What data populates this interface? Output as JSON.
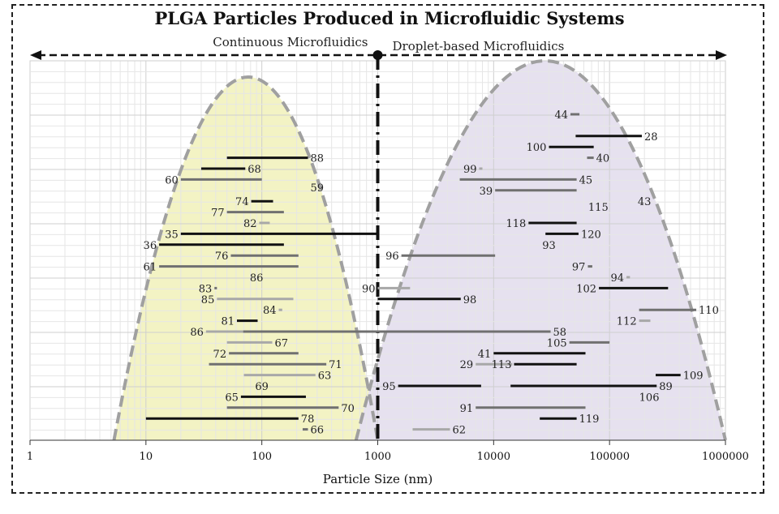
{
  "chart_data": {
    "type": "range-bar",
    "title": "PLGA Particles Produced in Microfluidic Systems",
    "xlabel": "Particle Size (nm)",
    "ylabel": "",
    "xscale": "log",
    "xlim": [
      1,
      1000000
    ],
    "xticks": [
      "1",
      "10",
      "100",
      "1000",
      "10000",
      "100000",
      "1000000"
    ],
    "ylim_rows": [
      -5,
      30
    ],
    "grid": true,
    "regions": [
      {
        "label": "Continuous Microfluidics",
        "side": "left",
        "color": "#f3f3c4",
        "curve_range": [
          5.3,
          1000
        ],
        "curve_peak": 80
      },
      {
        "label": "Droplet-based Microfluidics",
        "side": "right",
        "color": "#e6e1ef",
        "curve_range": [
          650,
          1000000
        ],
        "curve_peak": 30000
      }
    ],
    "divider_x": 1000,
    "colors": {
      "dark": "#111111",
      "mid": "#707070",
      "light": "#a8a8a8",
      "curve": "#a0a0a0"
    },
    "bars": [
      {
        "ref": "88",
        "row": 4,
        "min": 50,
        "max": 250,
        "tone": "dark",
        "label_side": "right"
      },
      {
        "ref": "68",
        "row": 5,
        "min": 30,
        "max": 72,
        "tone": "dark",
        "label_side": "right"
      },
      {
        "ref": "60",
        "row": 6,
        "min": 20,
        "max": 100,
        "tone": "mid",
        "label_side": "left"
      },
      {
        "ref": "74",
        "row": 8,
        "min": 81,
        "max": 125,
        "tone": "dark",
        "label_side": "left"
      },
      {
        "ref": "77",
        "row": 9,
        "min": 50,
        "max": 155,
        "tone": "mid",
        "label_side": "left"
      },
      {
        "ref": "82",
        "row": 10,
        "min": 95,
        "max": 117,
        "tone": "light",
        "label_side": "left"
      },
      {
        "ref": "35",
        "row": 11,
        "min": 20,
        "max": 1000,
        "tone": "dark",
        "label_side": "left"
      },
      {
        "ref": "36",
        "row": 12,
        "min": 13,
        "max": 155,
        "tone": "dark",
        "label_side": "left"
      },
      {
        "ref": "76",
        "row": 13,
        "min": 54,
        "max": 207,
        "tone": "mid",
        "label_side": "left"
      },
      {
        "ref": "61",
        "row": 14,
        "min": 13,
        "max": 207,
        "tone": "mid",
        "label_side": "left"
      },
      {
        "ref": "83",
        "row": 16,
        "min": 39,
        "max": 41,
        "tone": "mid",
        "label_side": "left"
      },
      {
        "ref": "85",
        "row": 17,
        "min": 41,
        "max": 187,
        "tone": "light",
        "label_side": "left"
      },
      {
        "ref": "84",
        "row": 18,
        "min": 140,
        "max": 150,
        "tone": "light",
        "label_side": "left"
      },
      {
        "ref": "81",
        "row": 19,
        "min": 61,
        "max": 92,
        "tone": "dark",
        "label_side": "left"
      },
      {
        "ref": "86",
        "row": 20,
        "min": 33,
        "max": 69,
        "tone": "light",
        "label_side": "left"
      },
      {
        "ref": "58",
        "row": 20,
        "min": 69,
        "max": 31000,
        "tone": "mid",
        "label_side": "right"
      },
      {
        "ref": "67",
        "row": 21,
        "min": 50,
        "max": 123,
        "tone": "light",
        "label_side": "right"
      },
      {
        "ref": "72",
        "row": 22,
        "min": 52,
        "max": 207,
        "tone": "mid",
        "label_side": "left"
      },
      {
        "ref": "71",
        "row": 23,
        "min": 35,
        "max": 360,
        "tone": "mid",
        "label_side": "right"
      },
      {
        "ref": "63",
        "row": 24,
        "min": 70,
        "max": 290,
        "tone": "light",
        "label_side": "right"
      },
      {
        "ref": "65",
        "row": 26,
        "min": 66,
        "max": 240,
        "tone": "dark",
        "label_side": "left"
      },
      {
        "ref": "70",
        "row": 27,
        "min": 50,
        "max": 460,
        "tone": "mid",
        "label_side": "right"
      },
      {
        "ref": "78",
        "row": 28,
        "min": 10,
        "max": 207,
        "tone": "dark",
        "label_side": "right"
      },
      {
        "ref": "66",
        "row": 29,
        "min": 225,
        "max": 250,
        "tone": "mid",
        "label_side": "right"
      },
      {
        "ref": "44",
        "row": 0,
        "min": 46000,
        "max": 55000,
        "tone": "mid",
        "label_side": "left"
      },
      {
        "ref": "28",
        "row": 2,
        "min": 51000,
        "max": 190000,
        "tone": "dark",
        "label_side": "right"
      },
      {
        "ref": "100",
        "row": 3,
        "min": 30000,
        "max": 73000,
        "tone": "dark",
        "label_side": "left"
      },
      {
        "ref": "40",
        "row": 4,
        "min": 64000,
        "max": 73000,
        "tone": "mid",
        "label_side": "right"
      },
      {
        "ref": "99",
        "row": 5,
        "min": 7500,
        "max": 8000,
        "tone": "light",
        "label_side": "left"
      },
      {
        "ref": "45",
        "row": 6,
        "min": 5100,
        "max": 52000,
        "tone": "mid",
        "label_side": "right"
      },
      {
        "ref": "39",
        "row": 7,
        "min": 10300,
        "max": 52000,
        "tone": "mid",
        "label_side": "left"
      },
      {
        "ref": "118",
        "row": 10,
        "min": 20000,
        "max": 52000,
        "tone": "dark",
        "label_side": "left"
      },
      {
        "ref": "120",
        "row": 11,
        "min": 28000,
        "max": 54000,
        "tone": "dark",
        "label_side": "right"
      },
      {
        "ref": "96",
        "row": 13,
        "min": 1600,
        "max": 10300,
        "tone": "mid",
        "label_side": "left"
      },
      {
        "ref": "97",
        "row": 14,
        "min": 65000,
        "max": 71000,
        "tone": "mid",
        "label_side": "left"
      },
      {
        "ref": "94",
        "row": 15,
        "min": 140000,
        "max": 150000,
        "tone": "light",
        "label_side": "left"
      },
      {
        "ref": "90",
        "row": 16,
        "min": 1000,
        "max": 1900,
        "tone": "light",
        "label_side": "left"
      },
      {
        "ref": "102",
        "row": 16,
        "min": 81000,
        "max": 320000,
        "tone": "dark",
        "label_side": "left"
      },
      {
        "ref": "98",
        "row": 17,
        "min": 1000,
        "max": 5200,
        "tone": "dark",
        "label_side": "right"
      },
      {
        "ref": "110",
        "row": 18,
        "min": 180000,
        "max": 560000,
        "tone": "mid",
        "label_side": "right"
      },
      {
        "ref": "112",
        "row": 19,
        "min": 180000,
        "max": 225000,
        "tone": "light",
        "label_side": "left"
      },
      {
        "ref": "105",
        "row": 21,
        "min": 45000,
        "max": 100000,
        "tone": "mid",
        "label_side": "left"
      },
      {
        "ref": "41",
        "row": 22,
        "min": 10000,
        "max": 62000,
        "tone": "dark",
        "label_side": "left"
      },
      {
        "ref": "29",
        "row": 23,
        "min": 7000,
        "max": 14500,
        "tone": "light",
        "label_side": "left"
      },
      {
        "ref": "113",
        "row": 23,
        "min": 15000,
        "max": 52000,
        "tone": "dark",
        "label_side": "left"
      },
      {
        "ref": "109",
        "row": 24,
        "min": 250000,
        "max": 410000,
        "tone": "dark",
        "label_side": "right"
      },
      {
        "ref": "95",
        "row": 25,
        "min": 1500,
        "max": 7800,
        "tone": "dark",
        "label_side": "left"
      },
      {
        "ref": "89",
        "row": 25,
        "min": 14000,
        "max": 255000,
        "tone": "dark",
        "label_side": "right"
      },
      {
        "ref": "91",
        "row": 27,
        "min": 7000,
        "max": 62000,
        "tone": "mid",
        "label_side": "left"
      },
      {
        "ref": "119",
        "row": 28,
        "min": 25000,
        "max": 52000,
        "tone": "dark",
        "label_side": "right"
      },
      {
        "ref": "62",
        "row": 29,
        "min": 2000,
        "max": 4200,
        "tone": "light",
        "label_side": "right"
      }
    ],
    "labels_only": [
      {
        "ref": "59",
        "row": 6.7,
        "x": 300
      },
      {
        "ref": "86",
        "row": 15,
        "x": 90
      },
      {
        "ref": "69",
        "row": 25,
        "x": 100
      },
      {
        "ref": "43",
        "row": 8,
        "x": 200000
      },
      {
        "ref": "115",
        "row": 8.5,
        "x": 80000
      },
      {
        "ref": "93",
        "row": 12,
        "x": 30000
      },
      {
        "ref": "106",
        "row": 26,
        "x": 220000
      }
    ]
  }
}
